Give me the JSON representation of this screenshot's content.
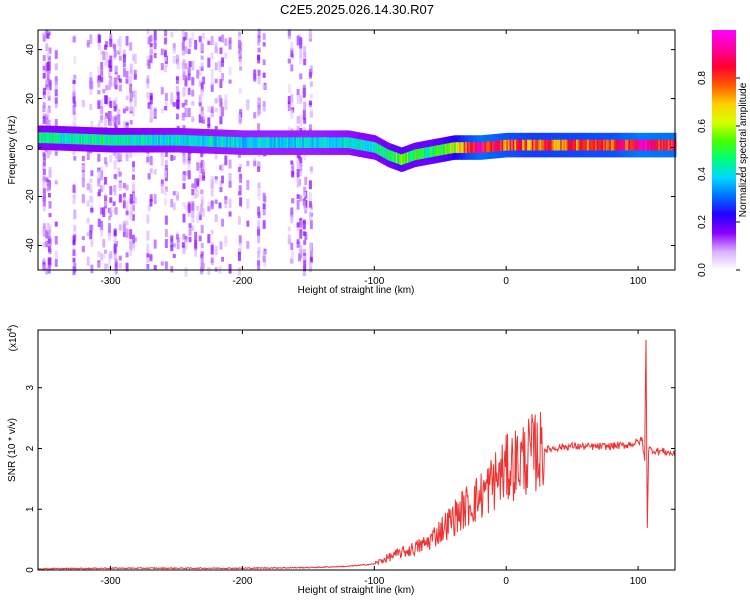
{
  "title": "C2E5.2025.026.14.30.R07",
  "chart_data": [
    {
      "type": "heatmap",
      "xlabel": "Height of straight line (km)",
      "ylabel": "Frequency (Hz)",
      "xlim": [
        -355,
        128
      ],
      "ylim": [
        -50,
        48
      ],
      "xticks": [
        -300,
        -200,
        -100,
        0,
        100
      ],
      "xtick_labels": [
        "-300",
        "-200",
        "-100",
        "0",
        "100"
      ],
      "yticks": [
        -40,
        -20,
        0,
        20,
        40
      ],
      "ytick_labels": [
        "-40",
        "-20",
        "0",
        "20",
        "40"
      ],
      "colorbar": {
        "label": "Normalized spectral amplitude",
        "range": [
          0,
          1
        ],
        "ticks": [
          0.0,
          0.2,
          0.4,
          0.6,
          0.8
        ],
        "tick_labels": [
          "0.0",
          "0.2",
          "0.4",
          "0.6",
          "0.8"
        ],
        "colors": [
          "#ffffff",
          "#d9b0ff",
          "#8a00ff",
          "#2400ff",
          "#0070ff",
          "#00d8ff",
          "#00ff7a",
          "#46ff00",
          "#d8ff00",
          "#ffd000",
          "#ff5a00",
          "#ff0030",
          "#ff00a0",
          "#ff00ff"
        ]
      },
      "noise_region_x": [
        -355,
        -145
      ],
      "ridge": {
        "x": [
          -350,
          -300,
          -250,
          -200,
          -150,
          -120,
          -100,
          -90,
          -80,
          -70,
          -60,
          -50,
          -40,
          -30,
          -20,
          0,
          20,
          50,
          80,
          100,
          128
        ],
        "freq": [
          4,
          3,
          3,
          2,
          2,
          2,
          0,
          -3,
          -5,
          -3,
          -2,
          -1,
          0,
          0,
          0,
          1,
          1,
          1,
          1,
          1,
          1
        ],
        "amplitude": [
          0.45,
          0.45,
          0.42,
          0.4,
          0.4,
          0.42,
          0.45,
          0.5,
          0.55,
          0.5,
          0.5,
          0.55,
          0.65,
          0.8,
          0.88,
          0.82,
          0.78,
          0.8,
          0.82,
          0.9,
          0.88
        ]
      }
    },
    {
      "type": "line",
      "xlabel": "Height of straight line (km)",
      "ylabel": "SNR (10 * v/v)",
      "y_multiplier": "(x10",
      "y_multiplier_exp": "4",
      "y_multiplier_close": ")",
      "xlim": [
        -355,
        128
      ],
      "ylim": [
        0,
        3.95
      ],
      "xticks": [
        -300,
        -200,
        -100,
        0,
        100
      ],
      "xtick_labels": [
        "-300",
        "-200",
        "-100",
        "0",
        "100"
      ],
      "yticks": [
        0,
        1,
        2,
        3
      ],
      "ytick_labels": [
        "0",
        "1",
        "2",
        "3"
      ],
      "color": "#ee3333",
      "series": [
        {
          "x": [
            -355,
            -300,
            -250,
            -200,
            -150,
            -120,
            -100,
            -90,
            -80,
            -70,
            -60,
            -50,
            -40,
            -30,
            -20,
            -10,
            0,
            10,
            20,
            30,
            40,
            50,
            60,
            70,
            80,
            90,
            95,
            100,
            103,
            105,
            106,
            107,
            108,
            110,
            120,
            128
          ],
          "y": [
            0.02,
            0.03,
            0.03,
            0.03,
            0.04,
            0.06,
            0.1,
            0.2,
            0.28,
            0.35,
            0.45,
            0.65,
            0.85,
            1.05,
            1.2,
            1.45,
            1.65,
            1.8,
            1.92,
            1.98,
            2.02,
            2.04,
            2.03,
            2.03,
            2.04,
            2.05,
            2.08,
            2.1,
            2.15,
            1.8,
            3.9,
            0.7,
            2.0,
            1.97,
            1.95,
            1.9
          ]
        }
      ]
    }
  ]
}
